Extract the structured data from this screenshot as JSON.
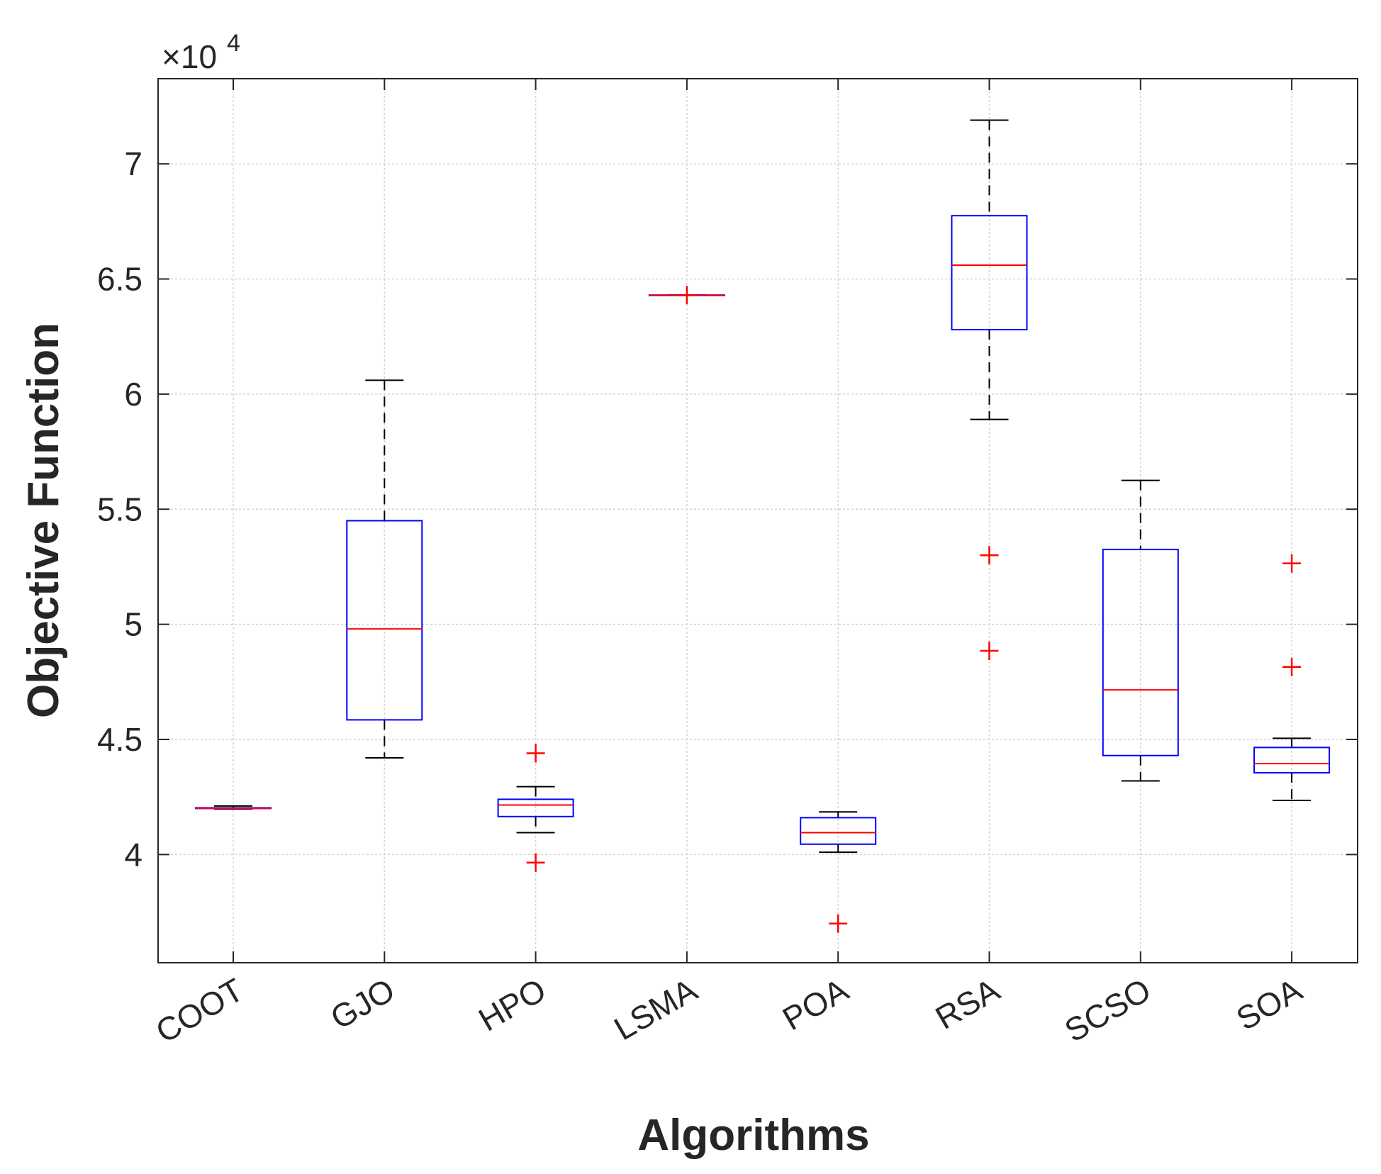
{
  "chart_data": {
    "type": "box",
    "xlabel": "Algorithms",
    "ylabel": "Objective Function",
    "y_exponent_label": "×10",
    "y_exponent_power": "4",
    "ylim": [
      3.53,
      7.37
    ],
    "y_ticks": [
      4,
      4.5,
      5,
      5.5,
      6,
      6.5,
      7
    ],
    "y_tick_labels": [
      "4",
      "4.5",
      "5",
      "5.5",
      "6",
      "6.5",
      "7"
    ],
    "grid": true,
    "colors": {
      "box": "#0000ff",
      "median": "#ff0000",
      "whisker": "#000000",
      "outlier": "#ff0000",
      "grid": "#d3d3d3",
      "axis": "#262626"
    },
    "categories": [
      "COOT",
      "GJO",
      "HPO",
      "LSMA",
      "POA",
      "RSA",
      "SCSO",
      "SOA"
    ],
    "boxes": [
      {
        "name": "COOT",
        "whisker_low": 4.198,
        "q1": 4.2,
        "median": 4.201,
        "q3": 4.203,
        "whisker_high": 4.211,
        "outliers": []
      },
      {
        "name": "GJO",
        "whisker_low": 4.42,
        "q1": 4.585,
        "median": 4.98,
        "q3": 5.45,
        "whisker_high": 6.06,
        "outliers": []
      },
      {
        "name": "HPO",
        "whisker_low": 4.095,
        "q1": 4.165,
        "median": 4.215,
        "q3": 4.24,
        "whisker_high": 4.295,
        "outliers": [
          4.44,
          3.965
        ]
      },
      {
        "name": "LSMA",
        "whisker_low": 6.43,
        "q1": 6.43,
        "median": 6.43,
        "q3": 6.43,
        "whisker_high": 6.43,
        "outliers": [
          6.43
        ]
      },
      {
        "name": "POA",
        "whisker_low": 4.01,
        "q1": 4.045,
        "median": 4.095,
        "q3": 4.16,
        "whisker_high": 4.185,
        "outliers": [
          3.7
        ]
      },
      {
        "name": "RSA",
        "whisker_low": 5.89,
        "q1": 6.28,
        "median": 6.56,
        "q3": 6.775,
        "whisker_high": 7.19,
        "outliers": [
          5.3,
          4.885
        ]
      },
      {
        "name": "SCSO",
        "whisker_low": 4.32,
        "q1": 4.43,
        "median": 4.715,
        "q3": 5.325,
        "whisker_high": 5.625,
        "outliers": []
      },
      {
        "name": "SOA",
        "whisker_low": 4.235,
        "q1": 4.355,
        "median": 4.395,
        "q3": 4.465,
        "whisker_high": 4.505,
        "outliers": [
          5.265,
          4.815
        ]
      }
    ]
  }
}
